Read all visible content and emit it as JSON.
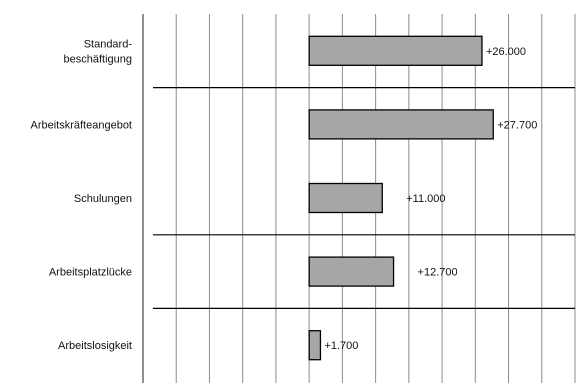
{
  "chart_data": {
    "type": "bar",
    "orientation": "horizontal",
    "categories": [
      [
        "Standard-",
        "beschäftigung"
      ],
      [
        "Arbeitskräfteangebot"
      ],
      [
        "Schulungen"
      ],
      [
        "Arbeitsplatzlücke"
      ],
      [
        "Arbeitslosigkeit"
      ]
    ],
    "values": [
      26000,
      27700,
      11000,
      12700,
      1700
    ],
    "value_labels": [
      "+26.000",
      "+27.700",
      "+11.000",
      "+12.700",
      "+1.700"
    ],
    "xlim": [
      -25000,
      40000
    ],
    "x_gridline_step": 5000,
    "grid": true,
    "legend": "none",
    "group_separators_after": [
      0,
      2,
      3
    ],
    "colors": {
      "bar_fill": "#a6a6a6",
      "bar_stroke": "#000000",
      "grid": "#8c8c8c",
      "separator": "#000000"
    }
  }
}
